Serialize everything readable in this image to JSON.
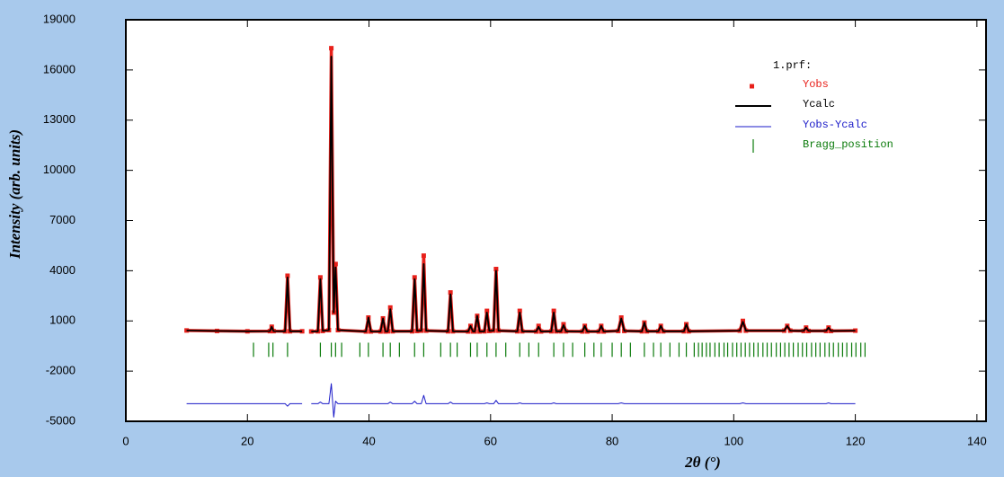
{
  "chart_data": {
    "type": "line",
    "xlabel": "2θ (°)",
    "ylabel": "Intensity (arb. units)",
    "legend_title": "1.prf:",
    "legend": "upper right",
    "xlim": [
      0,
      141.5
    ],
    "xticks": [
      0,
      20,
      40,
      60,
      80,
      100,
      120,
      140
    ],
    "ylim": [
      -5000,
      19000
    ],
    "yticks": [
      19000,
      16000,
      13000,
      10000,
      7000,
      4000,
      1000,
      -2000,
      -5000
    ],
    "x": [
      10,
      15,
      20,
      23.7,
      24.0,
      24.3,
      26.2,
      26.6,
      27.0,
      29.0,
      29.5,
      30.5,
      31.6,
      32.0,
      32.4,
      33.4,
      33.8,
      34.2,
      34.5,
      34.9,
      39.5,
      39.9,
      40.3,
      41.9,
      42.3,
      42.7,
      43.1,
      43.5,
      43.9,
      47.1,
      47.5,
      47.9,
      48.6,
      49.0,
      49.4,
      53.0,
      53.4,
      53.8,
      56.3,
      56.7,
      57.1,
      57.4,
      57.8,
      58.2,
      59.0,
      59.4,
      59.8,
      60.5,
      60.9,
      61.3,
      64.4,
      64.8,
      65.2,
      67.5,
      67.9,
      68.3,
      70.0,
      70.4,
      70.8,
      71.6,
      72.0,
      72.4,
      75.1,
      75.5,
      75.9,
      77.8,
      78.2,
      78.6,
      81.0,
      81.5,
      82.0,
      84.9,
      85.3,
      85.7,
      87.6,
      88.0,
      88.4,
      91.8,
      92.2,
      92.6,
      101.0,
      101.5,
      102.0,
      108.3,
      108.8,
      109.3,
      111.5,
      111.9,
      112.3,
      115.2,
      115.6,
      116.0,
      120
    ],
    "series": [
      {
        "name": "Yobs",
        "color": "#e8201a",
        "marker": "dot",
        "values": [
          430,
          400,
          380,
          390,
          650,
          390,
          380,
          3700,
          380,
          380,
          null,
          370,
          380,
          3600,
          400,
          450,
          17300,
          1500,
          4400,
          450,
          370,
          1200,
          370,
          370,
          1150,
          370,
          380,
          1800,
          380,
          380,
          3600,
          400,
          420,
          4900,
          420,
          380,
          2700,
          380,
          370,
          700,
          370,
          370,
          1300,
          370,
          380,
          1600,
          400,
          420,
          4100,
          420,
          380,
          1600,
          380,
          370,
          700,
          370,
          380,
          1600,
          380,
          380,
          800,
          380,
          370,
          700,
          370,
          370,
          700,
          370,
          400,
          1200,
          400,
          380,
          900,
          380,
          380,
          700,
          380,
          380,
          800,
          380,
          420,
          1000,
          420,
          420,
          700,
          420,
          400,
          600,
          400,
          400,
          600,
          400,
          420
        ]
      },
      {
        "name": "Ycalc",
        "color": "#000000",
        "marker": "line",
        "values": [
          430,
          400,
          380,
          390,
          650,
          390,
          380,
          3600,
          380,
          380,
          null,
          370,
          380,
          3500,
          400,
          450,
          16800,
          1500,
          4200,
          450,
          370,
          1200,
          370,
          370,
          1150,
          370,
          380,
          1700,
          380,
          380,
          3500,
          400,
          420,
          4400,
          420,
          380,
          2600,
          380,
          370,
          700,
          370,
          370,
          1300,
          370,
          380,
          1500,
          400,
          420,
          4000,
          420,
          380,
          1500,
          380,
          370,
          650,
          370,
          380,
          1500,
          380,
          380,
          750,
          380,
          370,
          700,
          370,
          370,
          700,
          370,
          400,
          1150,
          400,
          380,
          900,
          380,
          380,
          700,
          380,
          380,
          800,
          380,
          420,
          950,
          420,
          420,
          700,
          420,
          400,
          600,
          400,
          400,
          600,
          400,
          420
        ]
      },
      {
        "name": "Yobs-Ycalc",
        "color": "#1a1ac8",
        "marker": "line",
        "values": [
          -3950,
          -3950,
          -3950,
          -3950,
          -3950,
          -3950,
          -3950,
          -4100,
          -3950,
          -3950,
          null,
          -3950,
          -3950,
          -3850,
          -3950,
          -3950,
          -2750,
          -4750,
          -3800,
          -3950,
          -3950,
          -3950,
          -3950,
          -3950,
          -3950,
          -3950,
          -3950,
          -3850,
          -3950,
          -3950,
          -3800,
          -3950,
          -3950,
          -3450,
          -3950,
          -3950,
          -3850,
          -3950,
          -3950,
          -3950,
          -3950,
          -3950,
          -3950,
          -3950,
          -3950,
          -3900,
          -3950,
          -3950,
          -3750,
          -3950,
          -3950,
          -3900,
          -3950,
          -3950,
          -3950,
          -3950,
          -3950,
          -3900,
          -3950,
          -3950,
          -3950,
          -3950,
          -3950,
          -3950,
          -3950,
          -3950,
          -3950,
          -3950,
          -3950,
          -3900,
          -3950,
          -3950,
          -3950,
          -3950,
          -3950,
          -3950,
          -3950,
          -3950,
          -3950,
          -3950,
          -3950,
          -3900,
          -3950,
          -3950,
          -3950,
          -3950,
          -3950,
          -3950,
          -3950,
          -3950,
          -3900,
          -3950,
          -3950
        ]
      }
    ],
    "bragg": {
      "name": "Bragg_position",
      "color": "#0a7a0a",
      "y_range": [
        -1150,
        -300
      ],
      "x": [
        21,
        23.5,
        24.2,
        26.6,
        32.0,
        33.8,
        34.5,
        35.5,
        38.5,
        39.9,
        42.3,
        43.5,
        45.0,
        47.5,
        49.0,
        51.8,
        53.4,
        54.5,
        56.7,
        57.8,
        59.4,
        60.9,
        62.5,
        64.8,
        66.3,
        67.9,
        70.4,
        72.0,
        73.5,
        75.5,
        77.0,
        78.2,
        80.0,
        81.5,
        83.0,
        85.3,
        86.8,
        88.0,
        89.5,
        91.0,
        92.2,
        93.5,
        94.2,
        94.8,
        95.5,
        96.1,
        96.9,
        97.6,
        98.4,
        99.0,
        99.8,
        100.5,
        101.2,
        101.9,
        102.6,
        103.3,
        104.0,
        104.8,
        105.5,
        106.2,
        107.0,
        107.7,
        108.4,
        109.1,
        109.8,
        110.6,
        111.3,
        112.0,
        112.8,
        113.5,
        114.2,
        115.0,
        115.7,
        116.4,
        117.2,
        117.9,
        118.6,
        119.4,
        120.1,
        120.9,
        121.6
      ]
    }
  }
}
